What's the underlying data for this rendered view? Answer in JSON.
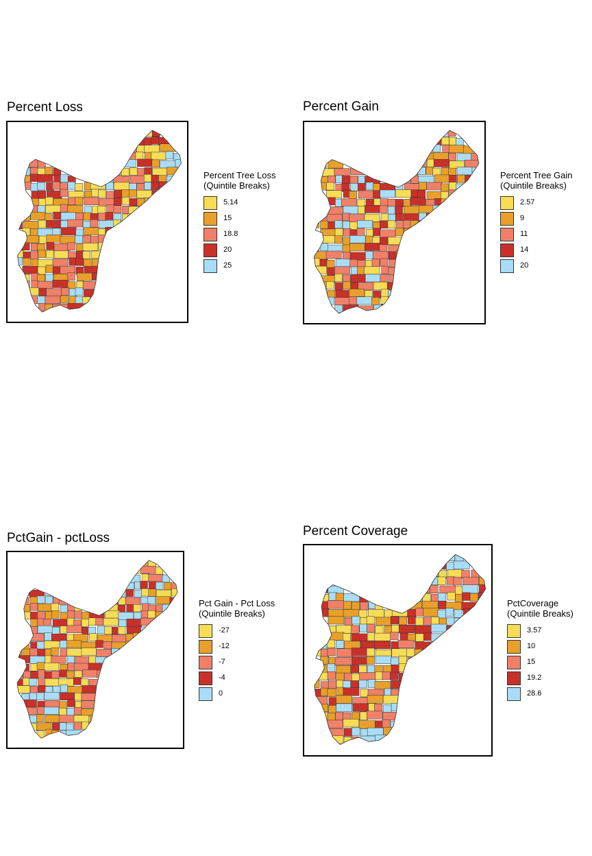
{
  "colors": {
    "yellow": "#F7DC56",
    "orange": "#E8A02A",
    "salmon": "#F08068",
    "red": "#C8312A",
    "lightblue": "#A9DDF5"
  },
  "maps": [
    {
      "id": "loss",
      "title": "Percent Loss",
      "legend_title_1": "Percent Tree Loss",
      "legend_title_2": "(Quintile Breaks)",
      "legend": [
        {
          "label": "5.14",
          "color": "#F7DC56"
        },
        {
          "label": "15",
          "color": "#E8A02A"
        },
        {
          "label": "18.8",
          "color": "#F08068"
        },
        {
          "label": "20",
          "color": "#C8312A"
        },
        {
          "label": "25",
          "color": "#A9DDF5"
        }
      ]
    },
    {
      "id": "gain",
      "title": "Percent Gain",
      "legend_title_1": "Percent Tree Gain",
      "legend_title_2": "(Quintile Breaks)",
      "legend": [
        {
          "label": "2.57",
          "color": "#F7DC56"
        },
        {
          "label": "9",
          "color": "#E8A02A"
        },
        {
          "label": "11",
          "color": "#F08068"
        },
        {
          "label": "14",
          "color": "#C8312A"
        },
        {
          "label": "20",
          "color": "#A9DDF5"
        }
      ]
    },
    {
      "id": "diff",
      "title": "PctGain - pctLoss",
      "legend_title_1": "Pct Gain - Pct Loss",
      "legend_title_2": "(Quintile Breaks)",
      "legend": [
        {
          "label": "-27",
          "color": "#F7DC56"
        },
        {
          "label": "-12",
          "color": "#E8A02A"
        },
        {
          "label": "-7",
          "color": "#F08068"
        },
        {
          "label": "-4",
          "color": "#C8312A"
        },
        {
          "label": "0",
          "color": "#A9DDF5"
        }
      ]
    },
    {
      "id": "coverage",
      "title": "Percent Coverage",
      "legend_title_1": "PctCoverage",
      "legend_title_2": "(Quintile Breaks)",
      "legend": [
        {
          "label": "3.57",
          "color": "#F7DC56"
        },
        {
          "label": "10",
          "color": "#E8A02A"
        },
        {
          "label": "15",
          "color": "#F08068"
        },
        {
          "label": "19.2",
          "color": "#C8312A"
        },
        {
          "label": "28.6",
          "color": "#A9DDF5"
        }
      ]
    }
  ]
}
